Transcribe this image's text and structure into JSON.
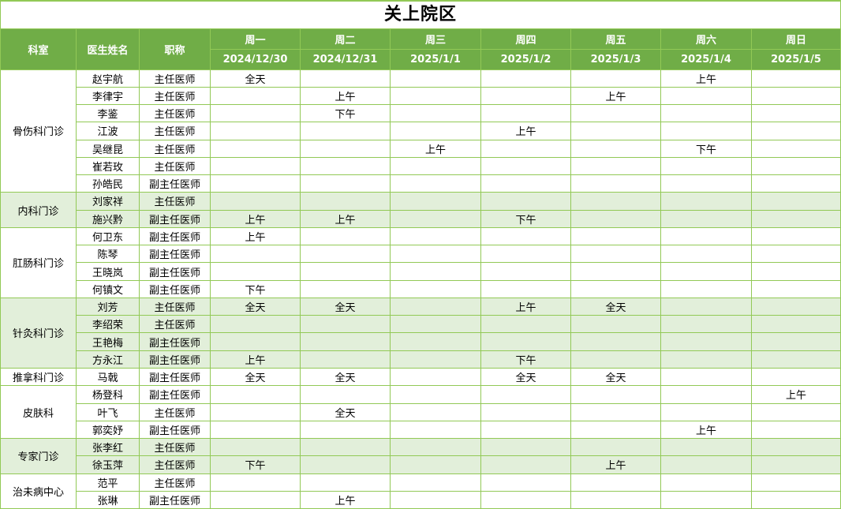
{
  "title": "关上院区",
  "columns": {
    "dept": "科室",
    "doctor": "医生姓名",
    "job_title": "职称"
  },
  "days": [
    {
      "label": "周一",
      "date": "2024/12/30"
    },
    {
      "label": "周二",
      "date": "2024/12/31"
    },
    {
      "label": "周三",
      "date": "2025/1/1"
    },
    {
      "label": "周四",
      "date": "2025/1/2"
    },
    {
      "label": "周五",
      "date": "2025/1/3"
    },
    {
      "label": "周六",
      "date": "2025/1/4"
    },
    {
      "label": "周日",
      "date": "2025/1/5"
    }
  ],
  "shift_values": {
    "full_day": "全天",
    "morning": "上午",
    "afternoon": "下午"
  },
  "sections": [
    {
      "dept": "骨伤科门诊",
      "shaded": false,
      "rows": [
        {
          "doctor": "赵宇航",
          "job_title": "主任医师",
          "schedule": [
            "全天",
            "",
            "",
            "",
            "",
            "上午",
            ""
          ]
        },
        {
          "doctor": "李律宇",
          "job_title": "主任医师",
          "schedule": [
            "",
            "上午",
            "",
            "",
            "上午",
            "",
            ""
          ]
        },
        {
          "doctor": "李鉴",
          "job_title": "主任医师",
          "schedule": [
            "",
            "下午",
            "",
            "",
            "",
            "",
            ""
          ]
        },
        {
          "doctor": "江波",
          "job_title": "主任医师",
          "schedule": [
            "",
            "",
            "",
            "上午",
            "",
            "",
            ""
          ]
        },
        {
          "doctor": "吴继昆",
          "job_title": "主任医师",
          "schedule": [
            "",
            "",
            "上午",
            "",
            "",
            "下午",
            ""
          ]
        },
        {
          "doctor": "崔若玫",
          "job_title": "主任医师",
          "schedule": [
            "",
            "",
            "",
            "",
            "",
            "",
            ""
          ]
        },
        {
          "doctor": "孙皓民",
          "job_title": "副主任医师",
          "schedule": [
            "",
            "",
            "",
            "",
            "",
            "",
            ""
          ]
        }
      ]
    },
    {
      "dept": "内科门诊",
      "shaded": true,
      "rows": [
        {
          "doctor": "刘家祥",
          "job_title": "主任医师",
          "schedule": [
            "",
            "",
            "",
            "",
            "",
            "",
            ""
          ]
        },
        {
          "doctor": "施兴黔",
          "job_title": "副主任医师",
          "schedule": [
            "上午",
            "上午",
            "",
            "下午",
            "",
            "",
            ""
          ]
        }
      ]
    },
    {
      "dept": "肛肠科门诊",
      "shaded": false,
      "rows": [
        {
          "doctor": "何卫东",
          "job_title": "副主任医师",
          "schedule": [
            "上午",
            "",
            "",
            "",
            "",
            "",
            ""
          ]
        },
        {
          "doctor": "陈琴",
          "job_title": "副主任医师",
          "schedule": [
            "",
            "",
            "",
            "",
            "",
            "",
            ""
          ]
        },
        {
          "doctor": "王晓岚",
          "job_title": "副主任医师",
          "schedule": [
            "",
            "",
            "",
            "",
            "",
            "",
            ""
          ]
        },
        {
          "doctor": "何镇文",
          "job_title": "副主任医师",
          "schedule": [
            "下午",
            "",
            "",
            "",
            "",
            "",
            ""
          ]
        }
      ]
    },
    {
      "dept": "针灸科门诊",
      "shaded": true,
      "rows": [
        {
          "doctor": "刘芳",
          "job_title": "主任医师",
          "schedule": [
            "全天",
            "全天",
            "",
            "上午",
            "全天",
            "",
            ""
          ]
        },
        {
          "doctor": "李绍荣",
          "job_title": "主任医师",
          "schedule": [
            "",
            "",
            "",
            "",
            "",
            "",
            ""
          ]
        },
        {
          "doctor": "王艳梅",
          "job_title": "副主任医师",
          "schedule": [
            "",
            "",
            "",
            "",
            "",
            "",
            ""
          ]
        },
        {
          "doctor": "方永江",
          "job_title": "副主任医师",
          "schedule": [
            "上午",
            "",
            "",
            "下午",
            "",
            "",
            ""
          ]
        }
      ]
    },
    {
      "dept": "推拿科门诊",
      "shaded": false,
      "rows": [
        {
          "doctor": "马戟",
          "job_title": "副主任医师",
          "schedule": [
            "全天",
            "全天",
            "",
            "全天",
            "全天",
            "",
            ""
          ]
        }
      ]
    },
    {
      "dept": "皮肤科",
      "shaded": false,
      "rows": [
        {
          "doctor": "杨登科",
          "job_title": "副主任医师",
          "schedule": [
            "",
            "",
            "",
            "",
            "",
            "",
            "上午"
          ]
        },
        {
          "doctor": "叶飞",
          "job_title": "主任医师",
          "schedule": [
            "",
            "全天",
            "",
            "",
            "",
            "",
            ""
          ]
        },
        {
          "doctor": "郭奕妤",
          "job_title": "副主任医师",
          "schedule": [
            "",
            "",
            "",
            "",
            "",
            "上午",
            ""
          ]
        }
      ]
    },
    {
      "dept": "专家门诊",
      "shaded": true,
      "rows": [
        {
          "doctor": "张李红",
          "job_title": "主任医师",
          "schedule": [
            "",
            "",
            "",
            "",
            "",
            "",
            ""
          ]
        },
        {
          "doctor": "徐玉萍",
          "job_title": "主任医师",
          "schedule": [
            "下午",
            "",
            "",
            "",
            "上午",
            "",
            ""
          ]
        }
      ]
    },
    {
      "dept": "治未病中心",
      "shaded": false,
      "rows": [
        {
          "doctor": "范平",
          "job_title": "主任医师",
          "schedule": [
            "",
            "",
            "",
            "",
            "",
            "",
            ""
          ]
        },
        {
          "doctor": "张琳",
          "job_title": "副主任医师",
          "schedule": [
            "",
            "上午",
            "",
            "",
            "",
            "",
            ""
          ]
        }
      ]
    }
  ],
  "colors": {
    "header_bg": "#70AD47",
    "header_text": "#FFFFFF",
    "grid": "#92C956",
    "shaded_row": "#E2EFDA",
    "row_bg": "#FFFFFF",
    "title_text": "#000000"
  }
}
